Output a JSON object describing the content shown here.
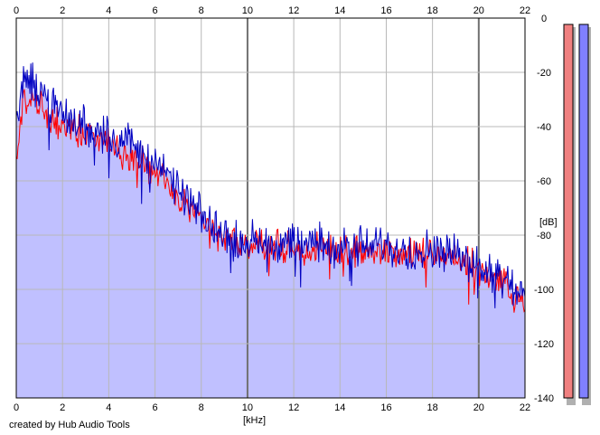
{
  "chart_data": {
    "type": "area",
    "title": "",
    "xlabel": "[kHz]",
    "ylabel": "[dB]",
    "xlim": [
      0,
      22
    ],
    "ylim": [
      -140,
      0
    ],
    "x_ticks": [
      0,
      2,
      4,
      6,
      8,
      10,
      12,
      14,
      16,
      18,
      20,
      22
    ],
    "y_ticks": [
      0,
      -20,
      -40,
      -60,
      -80,
      -100,
      -120,
      -140
    ],
    "y_tick_labels": [
      "0",
      "-20",
      "-40",
      "-60",
      "-80",
      "-100",
      "-120",
      "-140"
    ],
    "grid": true,
    "x_axis_top_and_bottom": true,
    "series": [
      {
        "color": "#ff0000",
        "x": [
          0,
          0.25,
          0.5,
          0.75,
          1,
          1.5,
          2,
          2.5,
          3,
          3.5,
          4,
          4.5,
          5,
          5.5,
          6,
          6.5,
          7,
          7.5,
          8,
          8.5,
          9,
          9.5,
          10,
          11,
          12,
          13,
          14,
          15,
          16,
          17,
          18,
          19,
          20,
          20.5,
          21,
          21.5,
          22
        ],
        "values": [
          -55,
          -32,
          -30,
          -31,
          -33,
          -38,
          -40,
          -41,
          -42,
          -44,
          -46,
          -48,
          -50,
          -53,
          -57,
          -61,
          -66,
          -71,
          -76,
          -79,
          -81,
          -83,
          -84,
          -84,
          -85,
          -85,
          -86,
          -86,
          -86,
          -87,
          -87,
          -89,
          -92,
          -95,
          -97,
          -100,
          -106
        ]
      },
      {
        "color": "#0000c0",
        "x": [
          0,
          0.25,
          0.5,
          0.75,
          1,
          1.5,
          2,
          2.5,
          3,
          3.5,
          4,
          4.5,
          5,
          5.5,
          6,
          6.5,
          7,
          7.5,
          8,
          8.5,
          9,
          9.5,
          10,
          11,
          12,
          13,
          14,
          15,
          16,
          17,
          18,
          19,
          20,
          20.5,
          21,
          21.5,
          22
        ],
        "values": [
          -40,
          -25,
          -23,
          -24,
          -26,
          -32,
          -36,
          -38,
          -40,
          -41,
          -42,
          -44,
          -46,
          -50,
          -54,
          -58,
          -63,
          -68,
          -73,
          -77,
          -79,
          -81,
          -82,
          -82,
          -83,
          -83,
          -84,
          -84,
          -84,
          -85,
          -85,
          -87,
          -90,
          -93,
          -95,
          -98,
          -104
        ]
      }
    ],
    "level_meters": [
      {
        "color": "#f08080"
      },
      {
        "color": "#8080ff"
      }
    ],
    "fill_color": "#c0c0ff",
    "credit": "created by Hub Audio Tools"
  }
}
